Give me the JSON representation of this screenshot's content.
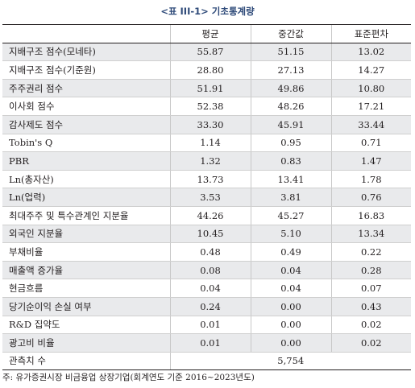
{
  "title": "<표 III-1> 기초통계량",
  "headers": [
    "",
    "평균",
    "중간값",
    "표준편차"
  ],
  "rows": [
    {
      "label": "지배구조 점수(모네타)",
      "mean": "55.87",
      "median": "51.15",
      "sd": "13.02"
    },
    {
      "label": "지배구조 점수(기준원)",
      "mean": "28.80",
      "median": "27.13",
      "sd": "14.27"
    },
    {
      "label": "주주권리 점수",
      "mean": "51.91",
      "median": "49.86",
      "sd": "10.80"
    },
    {
      "label": "이사회 점수",
      "mean": "52.38",
      "median": "48.26",
      "sd": "17.21"
    },
    {
      "label": "감사제도 점수",
      "mean": "33.30",
      "median": "45.91",
      "sd": "33.44"
    },
    {
      "label": "Tobin's Q",
      "mean": "1.14",
      "median": "0.95",
      "sd": "0.71"
    },
    {
      "label": "PBR",
      "mean": "1.32",
      "median": "0.83",
      "sd": "1.47"
    },
    {
      "label": "Ln(총자산)",
      "mean": "13.73",
      "median": "13.41",
      "sd": "1.78"
    },
    {
      "label": "Ln(업력)",
      "mean": "3.53",
      "median": "3.81",
      "sd": "0.76"
    },
    {
      "label": "최대주주 및 특수관계인 지분율",
      "mean": "44.26",
      "median": "45.27",
      "sd": "16.83"
    },
    {
      "label": "외국인 지분율",
      "mean": "10.45",
      "median": "5.10",
      "sd": "13.34"
    },
    {
      "label": "부채비율",
      "mean": "0.48",
      "median": "0.49",
      "sd": "0.22"
    },
    {
      "label": "매출액 증가율",
      "mean": "0.08",
      "median": "0.04",
      "sd": "0.28"
    },
    {
      "label": "현금흐름",
      "mean": "0.04",
      "median": "0.04",
      "sd": "0.07"
    },
    {
      "label": "당기순이익 손실 여부",
      "mean": "0.24",
      "median": "0.00",
      "sd": "0.43"
    },
    {
      "label": "R&D 집약도",
      "mean": "0.01",
      "median": "0.00",
      "sd": "0.02"
    },
    {
      "label": "광고비 비율",
      "mean": "0.01",
      "median": "0.00",
      "sd": "0.02"
    }
  ],
  "obs": {
    "label": "관측치 수",
    "value": "5,754"
  },
  "note": "주: 유가증권시장 비금융업 상장기업(회계연도 기준 2016~2023년도)"
}
